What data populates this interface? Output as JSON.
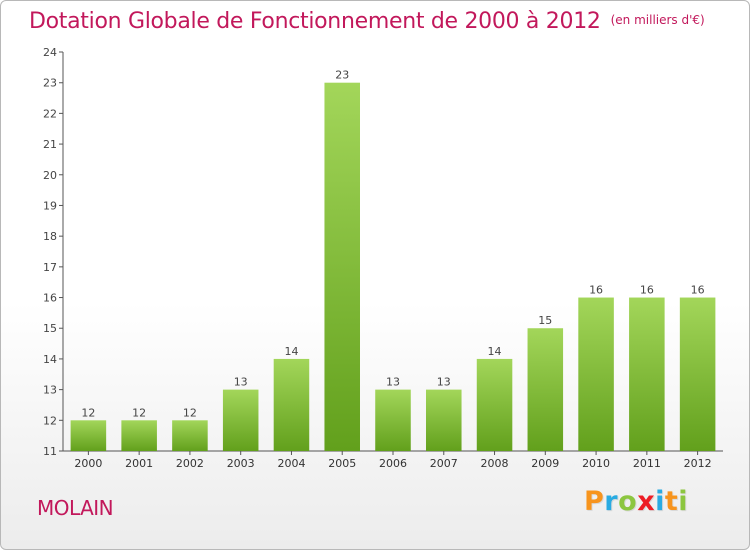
{
  "title": "Dotation Globale de Fonctionnement de 2000 à 2012",
  "unit": "(en milliers d'€)",
  "commune": "MOLAIN",
  "logo": {
    "letters": [
      "P",
      "r",
      "o",
      "x",
      "i",
      "t",
      "i"
    ],
    "colors": [
      "#f7941d",
      "#29abe2",
      "#8cc63f",
      "#ed1c24",
      "#29abe2",
      "#f7941d",
      "#8cc63f"
    ]
  },
  "colors": {
    "title": "#c2185b",
    "bar_top": "#a3d65a",
    "bar_bottom": "#62a01c",
    "axis": "#555555",
    "grid": "#eeeeee"
  },
  "chart_data": {
    "type": "bar",
    "title": "Dotation Globale de Fonctionnement de 2000 à 2012",
    "subtitle": "(en milliers d'€)",
    "xlabel": "",
    "ylabel": "",
    "categories": [
      "2000",
      "2001",
      "2002",
      "2003",
      "2004",
      "2005",
      "2006",
      "2007",
      "2008",
      "2009",
      "2010",
      "2011",
      "2012"
    ],
    "values": [
      12,
      12,
      12,
      13,
      14,
      23,
      13,
      13,
      14,
      15,
      16,
      16,
      16
    ],
    "ylim": [
      11,
      24
    ],
    "yticks": [
      11,
      12,
      13,
      14,
      15,
      16,
      17,
      18,
      19,
      20,
      21,
      22,
      23,
      24
    ],
    "grid": false,
    "legend": "none"
  }
}
